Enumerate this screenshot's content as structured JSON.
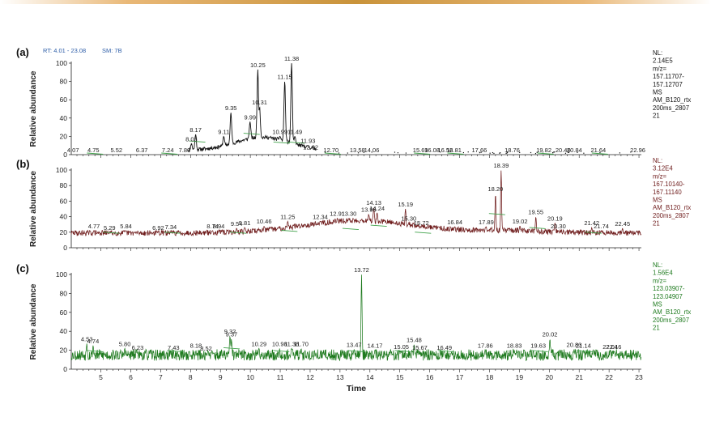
{
  "header": {
    "rt_label": "RT: 4.01 - 23.08",
    "sm_label": "SM: 7B"
  },
  "colors": {
    "frame_bar": "#e9b877",
    "frame_bar_mid": "#c9933a",
    "panel_a": "#111111",
    "panel_b": "#6e1b1b",
    "panel_c": "#1e7a1e",
    "marker": "#3fa24a",
    "rt_text": "#2e5ea8"
  },
  "chart_data": {
    "type": "line",
    "xlabel": "Time",
    "ylabel": "Relative abundance",
    "xlim": [
      4.01,
      23.08
    ],
    "x_ticks": [
      5,
      6,
      7,
      8,
      9,
      10,
      11,
      12,
      13,
      14,
      15,
      16,
      17,
      18,
      19,
      20,
      21,
      22,
      23
    ],
    "y_ticks": [
      0,
      20,
      40,
      60,
      80,
      100
    ],
    "panels": [
      {
        "id": "a",
        "panel_label": "(a)",
        "nl_text": [
          "NL:",
          "2.14E5",
          "m/z=",
          "157.11707-",
          "157.12707",
          "MS",
          "AM_B120_rtx",
          "200ms_2807",
          "21"
        ],
        "peaks": [
          {
            "x": 4.07,
            "y": 0
          },
          {
            "x": 4.75,
            "y": 0
          },
          {
            "x": 5.52,
            "y": 0
          },
          {
            "x": 6.37,
            "y": 0
          },
          {
            "x": 7.24,
            "y": 0
          },
          {
            "x": 7.8,
            "y": 0
          },
          {
            "x": 8.03,
            "y": 12
          },
          {
            "x": 8.17,
            "y": 22
          },
          {
            "x": 9.11,
            "y": 20
          },
          {
            "x": 9.35,
            "y": 46
          },
          {
            "x": 9.99,
            "y": 36
          },
          {
            "x": 10.25,
            "y": 93
          },
          {
            "x": 10.31,
            "y": 52
          },
          {
            "x": 10.99,
            "y": 20
          },
          {
            "x": 11.15,
            "y": 80
          },
          {
            "x": 11.38,
            "y": 100
          },
          {
            "x": 11.49,
            "y": 20
          },
          {
            "x": 11.93,
            "y": 10
          },
          {
            "x": 12.02,
            "y": 3
          },
          {
            "x": 12.7,
            "y": 0
          },
          {
            "x": 13.58,
            "y": 0
          },
          {
            "x": 14.06,
            "y": 0
          },
          {
            "x": 15.69,
            "y": 0
          },
          {
            "x": 16.08,
            "y": 0
          },
          {
            "x": 16.52,
            "y": 0
          },
          {
            "x": 16.81,
            "y": 0
          },
          {
            "x": 17.66,
            "y": 0
          },
          {
            "x": 18.76,
            "y": 0
          },
          {
            "x": 19.82,
            "y": 0
          },
          {
            "x": 20.46,
            "y": 0
          },
          {
            "x": 20.84,
            "y": 0
          },
          {
            "x": 21.64,
            "y": 0
          },
          {
            "x": 22.96,
            "y": 0
          }
        ]
      },
      {
        "id": "b",
        "panel_label": "(b)",
        "nl_text": [
          "NL:",
          "3.12E4",
          "m/z=",
          "167.10140-",
          "167.11140",
          "MS",
          "AM_B120_rtx",
          "200ms_2807",
          "21"
        ],
        "peaks": [
          {
            "x": 4.77,
            "y": 22
          },
          {
            "x": 5.29,
            "y": 20
          },
          {
            "x": 5.84,
            "y": 22
          },
          {
            "x": 6.92,
            "y": 20
          },
          {
            "x": 7.34,
            "y": 21
          },
          {
            "x": 8.74,
            "y": 22
          },
          {
            "x": 8.94,
            "y": 22
          },
          {
            "x": 9.54,
            "y": 25
          },
          {
            "x": 9.81,
            "y": 26
          },
          {
            "x": 10.46,
            "y": 28
          },
          {
            "x": 11.25,
            "y": 34
          },
          {
            "x": 12.34,
            "y": 34
          },
          {
            "x": 12.91,
            "y": 38
          },
          {
            "x": 13.3,
            "y": 38
          },
          {
            "x": 13.96,
            "y": 43
          },
          {
            "x": 14.13,
            "y": 52
          },
          {
            "x": 14.24,
            "y": 45
          },
          {
            "x": 15.19,
            "y": 50
          },
          {
            "x": 15.3,
            "y": 32
          },
          {
            "x": 15.72,
            "y": 26
          },
          {
            "x": 16.84,
            "y": 27
          },
          {
            "x": 17.89,
            "y": 27
          },
          {
            "x": 18.2,
            "y": 70
          },
          {
            "x": 18.39,
            "y": 100
          },
          {
            "x": 19.02,
            "y": 28
          },
          {
            "x": 19.55,
            "y": 40
          },
          {
            "x": 20.19,
            "y": 32
          },
          {
            "x": 20.3,
            "y": 22
          },
          {
            "x": 21.42,
            "y": 26
          },
          {
            "x": 21.74,
            "y": 22
          },
          {
            "x": 22.45,
            "y": 25
          }
        ]
      },
      {
        "id": "c",
        "panel_label": "(c)",
        "nl_text": [
          "NL:",
          "1.56E4",
          "m/z=",
          "123.03907-",
          "123.04907",
          "MS",
          "AM_B120_rtx",
          "200ms_2807",
          "21"
        ],
        "peaks": [
          {
            "x": 4.53,
            "y": 27
          },
          {
            "x": 4.74,
            "y": 25
          },
          {
            "x": 5.8,
            "y": 22
          },
          {
            "x": 6.23,
            "y": 18
          },
          {
            "x": 7.43,
            "y": 18
          },
          {
            "x": 8.18,
            "y": 20
          },
          {
            "x": 8.52,
            "y": 17
          },
          {
            "x": 9.32,
            "y": 35
          },
          {
            "x": 9.37,
            "y": 32
          },
          {
            "x": 10.29,
            "y": 22
          },
          {
            "x": 10.98,
            "y": 22
          },
          {
            "x": 11.38,
            "y": 22
          },
          {
            "x": 11.7,
            "y": 22
          },
          {
            "x": 13.47,
            "y": 21
          },
          {
            "x": 13.72,
            "y": 100
          },
          {
            "x": 14.17,
            "y": 20
          },
          {
            "x": 15.05,
            "y": 19
          },
          {
            "x": 15.48,
            "y": 26
          },
          {
            "x": 15.67,
            "y": 18
          },
          {
            "x": 16.49,
            "y": 18
          },
          {
            "x": 17.86,
            "y": 20
          },
          {
            "x": 18.83,
            "y": 20
          },
          {
            "x": 19.63,
            "y": 20
          },
          {
            "x": 20.02,
            "y": 32
          },
          {
            "x": 20.83,
            "y": 21
          },
          {
            "x": 21.14,
            "y": 20
          },
          {
            "x": 22.04,
            "y": 19
          },
          {
            "x": 22.16,
            "y": 19
          }
        ]
      }
    ]
  }
}
